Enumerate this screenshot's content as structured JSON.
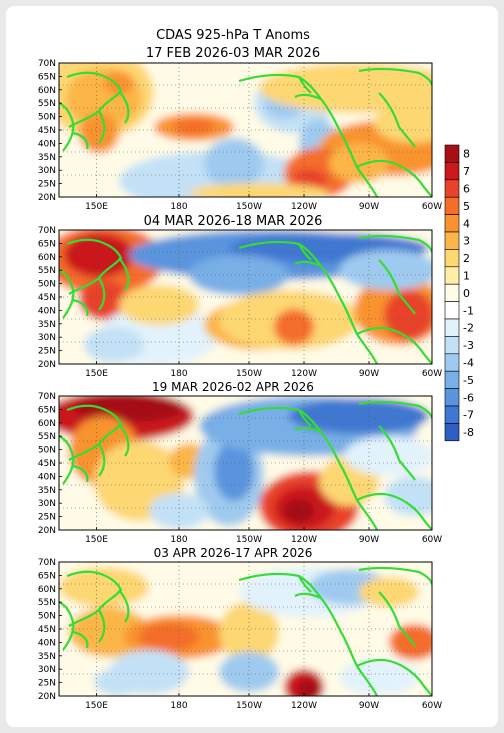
{
  "figure": {
    "title_line1": "CDAS 925-hPa T Anoms"
  },
  "panels": [
    {
      "title": "17 FEB 2026-03 MAR 2026"
    },
    {
      "title": "04 MAR 2026-18 MAR 2026"
    },
    {
      "title": "19 MAR 2026-02 APR 2026"
    },
    {
      "title": "03 APR 2026-17 APR 2026"
    }
  ],
  "axes": {
    "lat_labels": [
      "70N",
      "65N",
      "60N",
      "55N",
      "50N",
      "45N",
      "40N",
      "35N",
      "30N",
      "25N",
      "20N"
    ],
    "lon_labels": [
      "150E",
      "180",
      "150W",
      "120W",
      "90W",
      "60W"
    ]
  },
  "colorbar": {
    "levels": [
      {
        "label": "8",
        "color": "#a50f15"
      },
      {
        "label": "7",
        "color": "#cb181d"
      },
      {
        "label": "6",
        "color": "#e8422a"
      },
      {
        "label": "5",
        "color": "#f46d2b"
      },
      {
        "label": "4",
        "color": "#f9932f"
      },
      {
        "label": "3",
        "color": "#fbb647"
      },
      {
        "label": "2",
        "color": "#fdd772"
      },
      {
        "label": "1",
        "color": "#feeda6"
      },
      {
        "label": "0",
        "color": "#fffbe6"
      },
      {
        "label": "-1",
        "color": "#ffffff"
      },
      {
        "label": "-2",
        "color": "#e2f2fb"
      },
      {
        "label": "-3",
        "color": "#c3e1f6"
      },
      {
        "label": "-4",
        "color": "#9fcaef"
      },
      {
        "label": "-5",
        "color": "#78afe6"
      },
      {
        "label": "-6",
        "color": "#5a94dd"
      },
      {
        "label": "-7",
        "color": "#3f78d1"
      },
      {
        "label": "-8",
        "color": "#2f5fc2"
      }
    ]
  },
  "colors": {
    "coastline": "#33dd33"
  }
}
